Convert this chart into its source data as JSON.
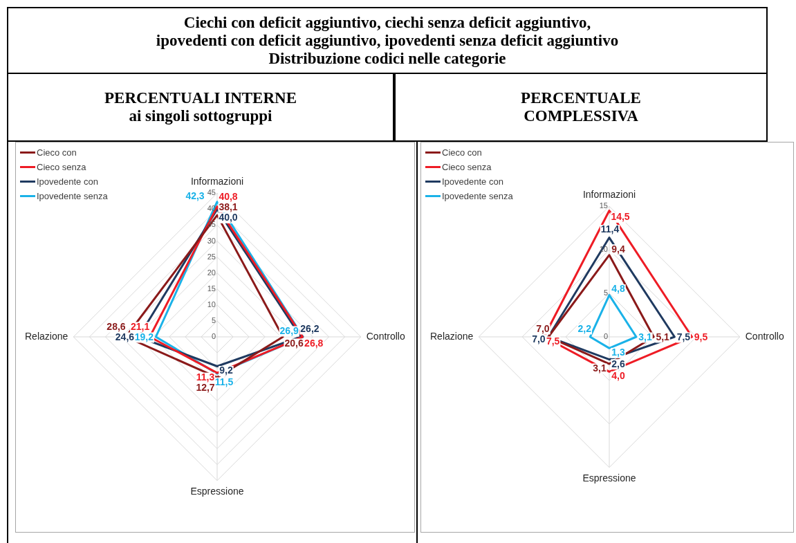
{
  "chart_data": [
    {
      "type": "radar",
      "title": "Ciechi con deficit aggiuntivo, ciechi senza deficit aggiuntivo,\nipovedenti con deficit aggiuntivo, ipovedenti senza deficit aggiuntivo\nDistribuzione codici nelle categorie",
      "subtitle": "PERCENTUALI INTERNE\nai singoli sottogruppi",
      "categories": [
        "Informazioni",
        "Controllo",
        "Espressione",
        "Relazione"
      ],
      "series": [
        {
          "name": "Cieco con",
          "color": "#8b1a1a",
          "values": [
            38.1,
            20.6,
            12.7,
            28.6
          ],
          "value_labels": [
            "38,1",
            "20,6",
            "12,7",
            "28,6"
          ]
        },
        {
          "name": "Cieco senza",
          "color": "#ee1c25",
          "values": [
            40.8,
            26.8,
            11.3,
            21.1
          ],
          "value_labels": [
            "40,8",
            "26,8",
            "11,3",
            "21,1"
          ]
        },
        {
          "name": "Ipovedente con",
          "color": "#1f3a60",
          "values": [
            40.0,
            26.2,
            9.2,
            24.6
          ],
          "value_labels": [
            "40,0",
            "26,2",
            "9,2",
            "24,6"
          ]
        },
        {
          "name": "Ipovedente senza",
          "color": "#1ab2e8",
          "values": [
            42.3,
            26.9,
            11.5,
            19.2
          ],
          "value_labels": [
            "42,3",
            "26,9",
            "11,5",
            "19,2"
          ]
        }
      ],
      "ylim": [
        0,
        45
      ],
      "yticks": [
        0,
        5,
        10,
        15,
        20,
        25,
        30,
        35,
        40,
        45
      ],
      "grid": true,
      "legend": "top left",
      "marker": "none",
      "line_style": "solid"
    },
    {
      "type": "radar",
      "subtitle": "PERCENTUALE\nCOMPLESSIVA",
      "categories": [
        "Informazioni",
        "Controllo",
        "Espressione",
        "Relazione"
      ],
      "series": [
        {
          "name": "Cieco con",
          "color": "#8b1a1a",
          "values": [
            9.4,
            5.1,
            3.1,
            7.0
          ],
          "value_labels": [
            "9,4",
            "5,1",
            "3,1",
            "7,0"
          ]
        },
        {
          "name": "Cieco senza",
          "color": "#ee1c25",
          "values": [
            14.5,
            9.5,
            4.0,
            7.5
          ],
          "value_labels": [
            "14,5",
            "9,5",
            "4,0",
            "7,5"
          ]
        },
        {
          "name": "Ipovedente con",
          "color": "#1f3a60",
          "values": [
            11.4,
            7.5,
            2.6,
            7.0
          ],
          "value_labels": [
            "11,4",
            "7,5",
            "2,6",
            "7,0"
          ]
        },
        {
          "name": "Ipovedente senza",
          "color": "#1ab2e8",
          "values": [
            4.8,
            3.1,
            1.3,
            2.2
          ],
          "value_labels": [
            "4,8",
            "3,1",
            "1,3",
            "2,2"
          ]
        }
      ],
      "ylim": [
        0,
        15
      ],
      "yticks": [
        0,
        5,
        10,
        15
      ],
      "grid": true,
      "legend": "top left",
      "marker": "none",
      "line_style": "solid"
    }
  ]
}
